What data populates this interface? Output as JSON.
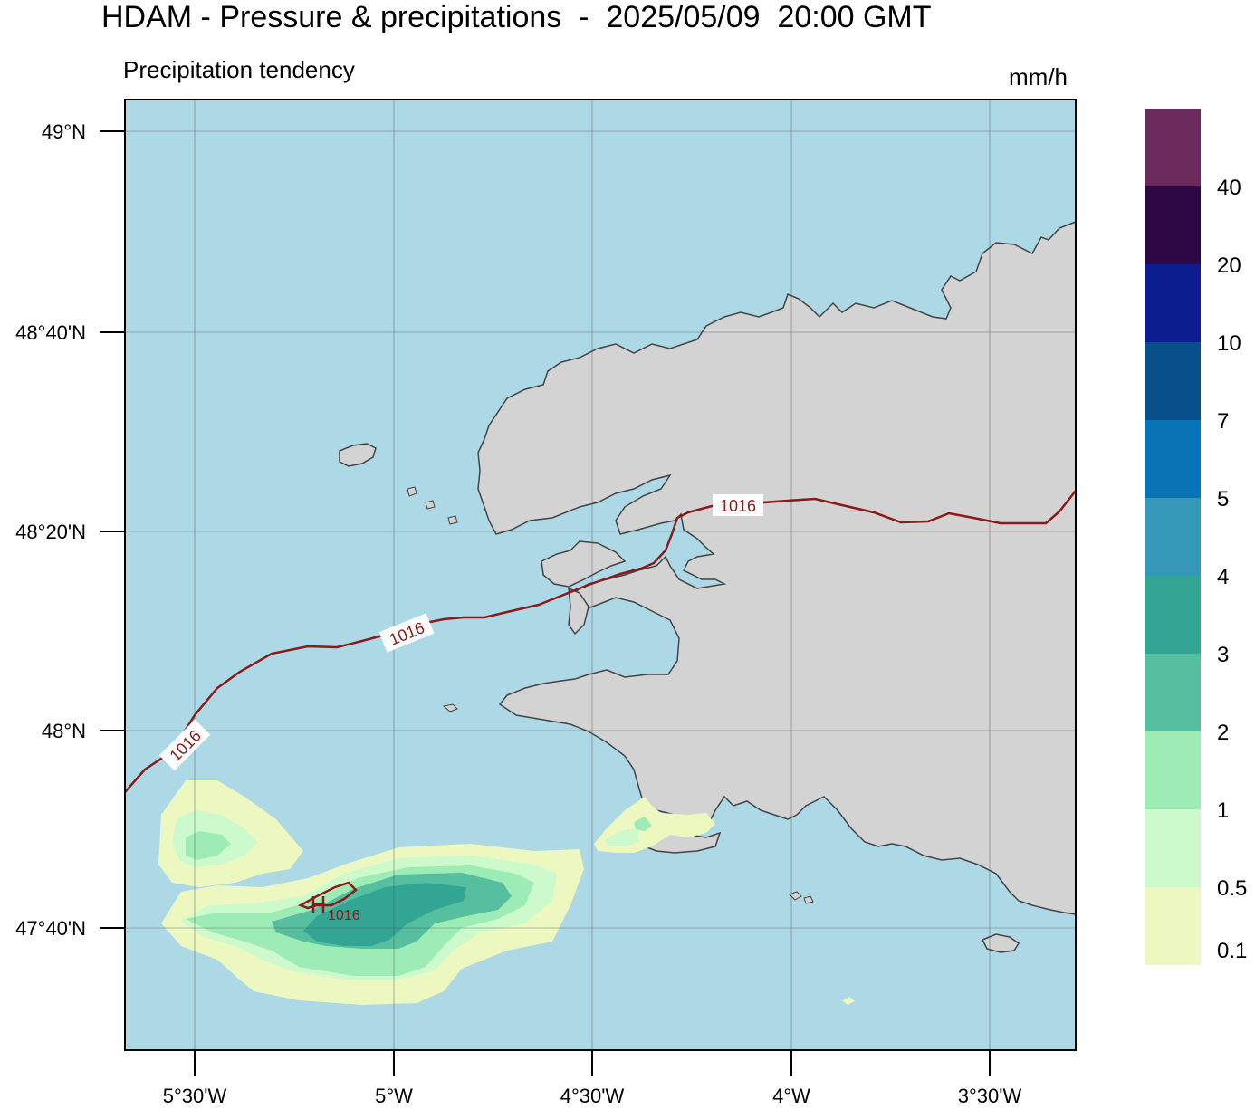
{
  "title": "HDAM - Pressure & precipitations  -  2025/05/09  20:00 GMT",
  "subtitle": "Precipitation tendency",
  "unit": "mm/h",
  "map": {
    "lat_ticks": [
      "49°N",
      "48°40'N",
      "48°20'N",
      "48°N",
      "47°40'N"
    ],
    "lon_ticks": [
      "5°30'W",
      "5°W",
      "4°30'W",
      "4°W",
      "3°30'W"
    ],
    "isobar_labels": [
      "1016",
      "1016",
      "1016",
      "1016"
    ],
    "colors": {
      "sea": "#add8e6",
      "land": "#d3d3d3",
      "isobar": "#8b1a1a"
    }
  },
  "colorbar": {
    "labels": [
      "40",
      "20",
      "10",
      "7",
      "5",
      "4",
      "3",
      "2",
      "1",
      "0.5",
      "0.1"
    ],
    "colors": [
      "#6a2b5c",
      "#2e0845",
      "#0c1d8f",
      "#094f8c",
      "#0874b6",
      "#3698b9",
      "#33a594",
      "#55bfa0",
      "#9eecb5",
      "#ccfacc",
      "#edf7c0"
    ]
  }
}
